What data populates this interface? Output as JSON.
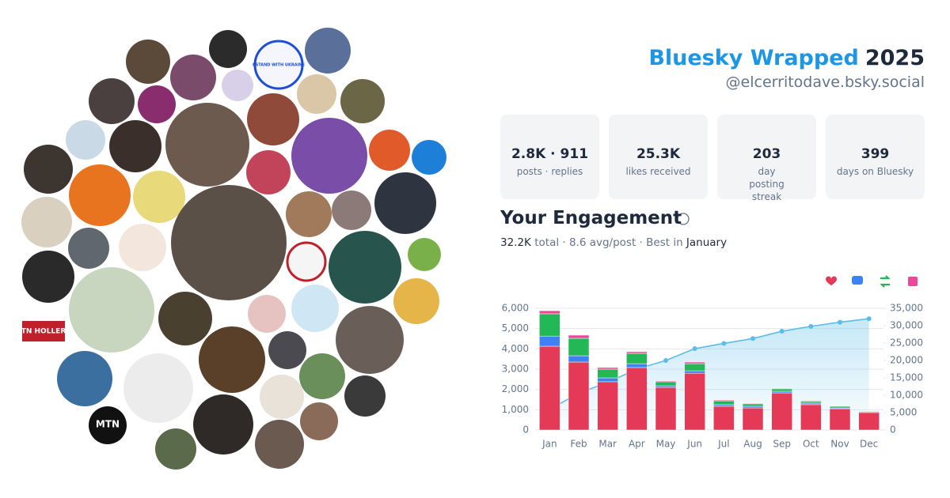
{
  "header": {
    "title": "Bluesky Wrapped",
    "year": "2025",
    "handle": "@elcerritodave.bsky.social"
  },
  "stats": [
    {
      "value": "2.8K · 911",
      "label": "posts · replies"
    },
    {
      "value": "25.3K",
      "label": "likes received"
    },
    {
      "value": "203",
      "label": "day posting streak"
    },
    {
      "value": "399",
      "label": "days on Bluesky"
    }
  ],
  "avatar_texts": [
    "I STAND WITH UKRAINE",
    "TN HOLLER",
    "MTN"
  ],
  "chart_data": {
    "type": "bar",
    "stacked": true,
    "title": "Your Engagement",
    "summary": [
      "32.2K",
      "total · 8.6 avg/post · Best in",
      "January"
    ],
    "categories": [
      "Jan",
      "Feb",
      "Mar",
      "Apr",
      "May",
      "Jun",
      "Jul",
      "Aug",
      "Sep",
      "Oct",
      "Nov",
      "Dec"
    ],
    "series": [
      {
        "type": "bar",
        "color": "#e53958",
        "values": [
          4130,
          3350,
          2380,
          3080,
          2100,
          2800,
          1170,
          1090,
          1830,
          1250,
          1050,
          860
        ]
      },
      {
        "type": "bar",
        "color": "#3b82f6",
        "values": [
          500,
          310,
          190,
          190,
          80,
          120,
          80,
          80,
          80,
          70,
          40,
          40
        ]
      },
      {
        "type": "bar",
        "color": "#22b855",
        "values": [
          1100,
          860,
          430,
          510,
          200,
          350,
          190,
          120,
          120,
          80,
          80,
          30
        ]
      },
      {
        "type": "bar",
        "color": "#ec4899",
        "values": [
          150,
          155,
          80,
          80,
          40,
          80,
          40,
          30,
          30,
          40,
          20,
          20
        ]
      },
      {
        "type": "line",
        "axis": "y2",
        "area": true,
        "color": "#5bbde8",
        "values": [
          5900,
          10600,
          13700,
          17500,
          20000,
          23400,
          24900,
          26300,
          28400,
          29800,
          31000,
          32000
        ]
      }
    ],
    "ylim": [
      0,
      6000
    ],
    "yticks": [
      0,
      {
        "value": 1000,
        "label": "1,000"
      },
      {
        "value": 2000,
        "label": "2,000"
      },
      {
        "value": 3000,
        "label": "3,000"
      },
      {
        "value": 4000,
        "label": "4,000"
      },
      {
        "value": 5000,
        "label": "5,000"
      },
      {
        "value": 6000,
        "label": "6,000"
      }
    ],
    "y2lim": [
      0,
      35000
    ],
    "y2ticks": [
      0,
      {
        "value": 5000,
        "label": "5,000"
      },
      {
        "value": 10000,
        "label": "10,000"
      },
      {
        "value": 15000,
        "label": "15,000"
      },
      {
        "value": 20000,
        "label": "20,000"
      },
      {
        "value": 25000,
        "label": "25,000"
      },
      {
        "value": 30000,
        "label": "30,000"
      },
      {
        "value": 35000,
        "label": "35,000"
      }
    ],
    "grid": true
  }
}
